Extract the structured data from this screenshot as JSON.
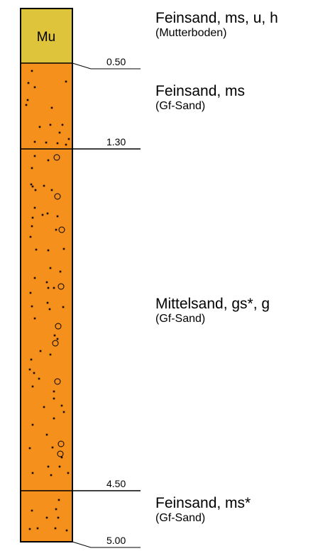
{
  "profile": {
    "colors": {
      "topsoil": "#dec43a",
      "sand": "#f5901c",
      "outline": "#000000"
    },
    "depth_unit": "m",
    "layers": [
      {
        "top": 0.0,
        "bottom": 0.5,
        "symbol": "Mu",
        "pattern": "none",
        "description": "Feinsand, ms, u, h",
        "note": "(Mutterboden)",
        "color_key": "topsoil"
      },
      {
        "top": 0.5,
        "bottom": 1.3,
        "symbol": "",
        "pattern": "fine-sand-dots",
        "description": "Feinsand, ms",
        "note": "(Gf-Sand)",
        "color_key": "sand"
      },
      {
        "top": 1.3,
        "bottom": 4.5,
        "symbol": "",
        "pattern": "medium-sand-gravel",
        "description": "Mittelsand, gs*, g",
        "note": "(Gf-Sand)",
        "color_key": "sand"
      },
      {
        "top": 4.5,
        "bottom": 5.0,
        "symbol": "",
        "pattern": "fine-sand-dots",
        "description": "Feinsand, ms*",
        "note": "(Gf-Sand)",
        "color_key": "sand"
      }
    ],
    "depth_labels": [
      "0.50",
      "1.30",
      "4.50",
      "5.00"
    ]
  }
}
